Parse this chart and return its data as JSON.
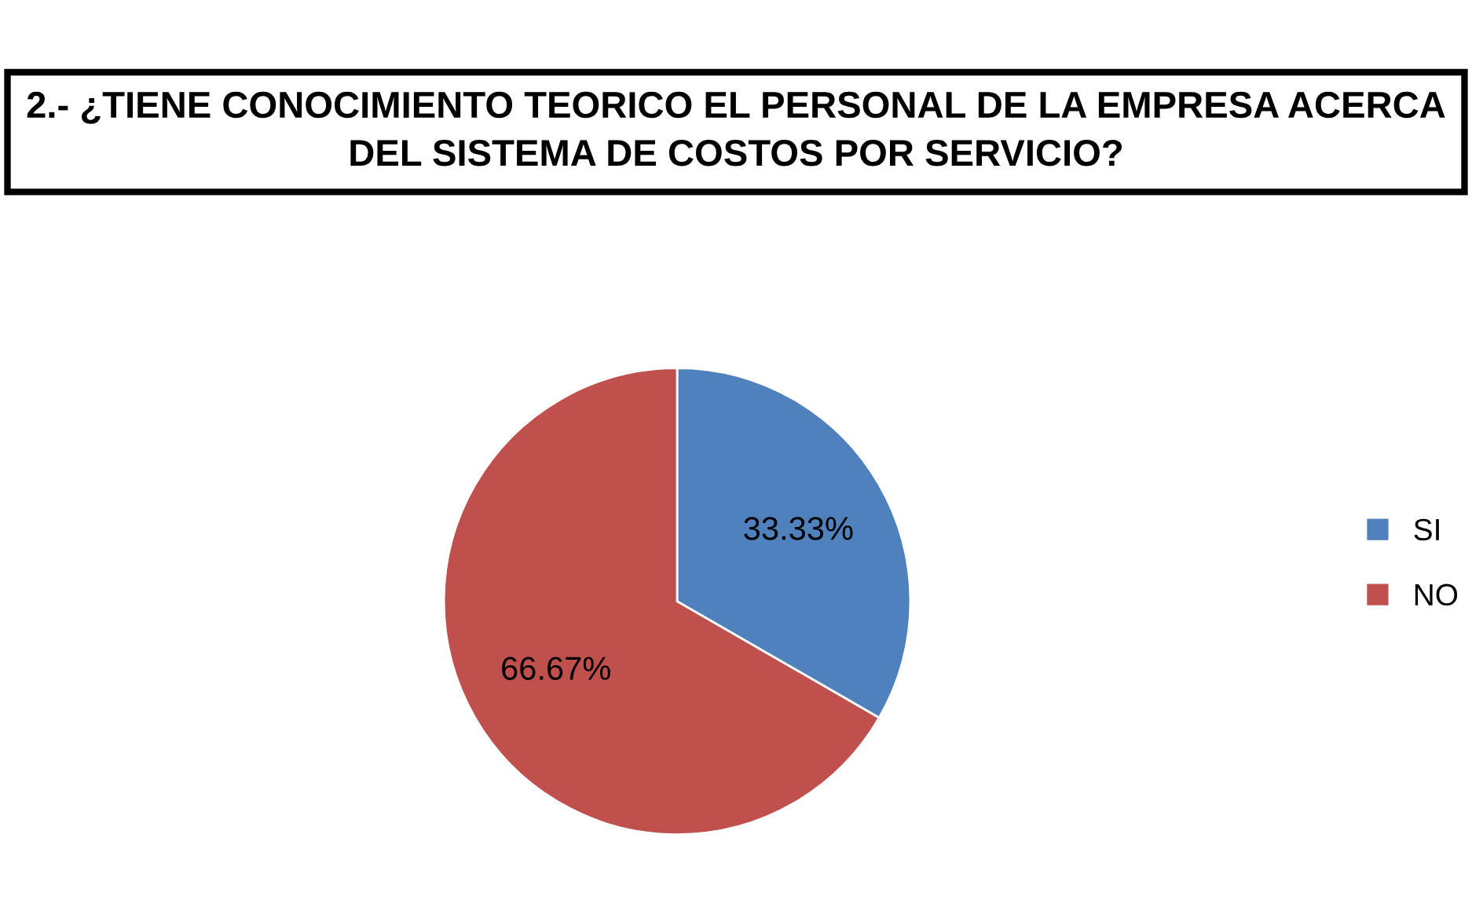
{
  "chart_data": {
    "type": "pie",
    "title": "2.- ¿TIENE CONOCIMIENTO TEORICO EL PERSONAL DE LA EMPRESA ACERCA DEL SISTEMA DE COSTOS POR SERVICIO?",
    "categories": [
      "SI",
      "NO"
    ],
    "values": [
      33.33,
      66.67
    ],
    "colors": [
      "#4f81bd",
      "#c0504d"
    ],
    "value_labels": [
      "33.33%",
      "66.67%"
    ],
    "legend": "right"
  }
}
